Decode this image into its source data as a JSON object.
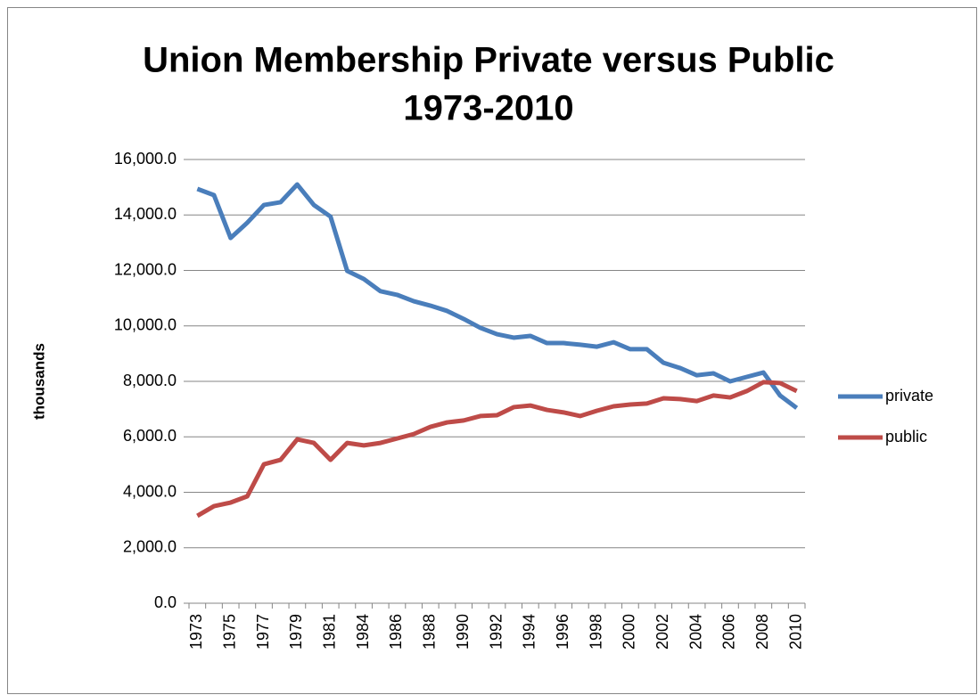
{
  "chart_data": {
    "type": "line",
    "title": [
      "Union Membership Private versus Public",
      "1973-2010"
    ],
    "y_label": "thousands",
    "categories": [
      "1973",
      null,
      "1975",
      null,
      "1977",
      null,
      "1979",
      null,
      "1981",
      null,
      "1984",
      null,
      "1986",
      null,
      "1988",
      null,
      "1990",
      null,
      "1992",
      null,
      "1994",
      null,
      "1996",
      null,
      "1998",
      null,
      "2000",
      null,
      "2002",
      null,
      "2004",
      null,
      "2006",
      null,
      "2008",
      null,
      "2010"
    ],
    "series": [
      {
        "name": "private",
        "color": "#4a7ebb",
        "values": [
          14940,
          14715,
          13170,
          13720,
          14360,
          14460,
          15100,
          14360,
          13940,
          11985,
          11690,
          11250,
          11120,
          10890,
          10730,
          10540,
          10250,
          9930,
          9700,
          9575,
          9640,
          9380,
          9380,
          9320,
          9250,
          9410,
          9160,
          9160,
          8670,
          8480,
          8220,
          8290,
          8000,
          8160,
          8320,
          7490,
          7040
        ]
      },
      {
        "name": "public",
        "color": "#be4b48",
        "values": [
          3150,
          3500,
          3630,
          3855,
          5010,
          5170,
          5910,
          5780,
          5170,
          5780,
          5690,
          5780,
          5940,
          6100,
          6360,
          6520,
          6590,
          6750,
          6780,
          7070,
          7130,
          6970,
          6880,
          6750,
          6940,
          7100,
          7165,
          7200,
          7390,
          7360,
          7290,
          7490,
          7420,
          7650,
          7970,
          7940,
          7650
        ]
      }
    ],
    "ylim": [
      0,
      16000
    ],
    "yticks": [
      {
        "value": 0,
        "label": "0.0"
      },
      {
        "value": 2000,
        "label": "2,000.0"
      },
      {
        "value": 4000,
        "label": "4,000.0"
      },
      {
        "value": 6000,
        "label": "6,000.0"
      },
      {
        "value": 8000,
        "label": "8,000.0"
      },
      {
        "value": 10000,
        "label": "10,000.0"
      },
      {
        "value": 12000,
        "label": "12,000.0"
      },
      {
        "value": 14000,
        "label": "14,000.0"
      },
      {
        "value": 16000,
        "label": "16,000.0"
      }
    ],
    "grid": true,
    "legend": "right"
  }
}
